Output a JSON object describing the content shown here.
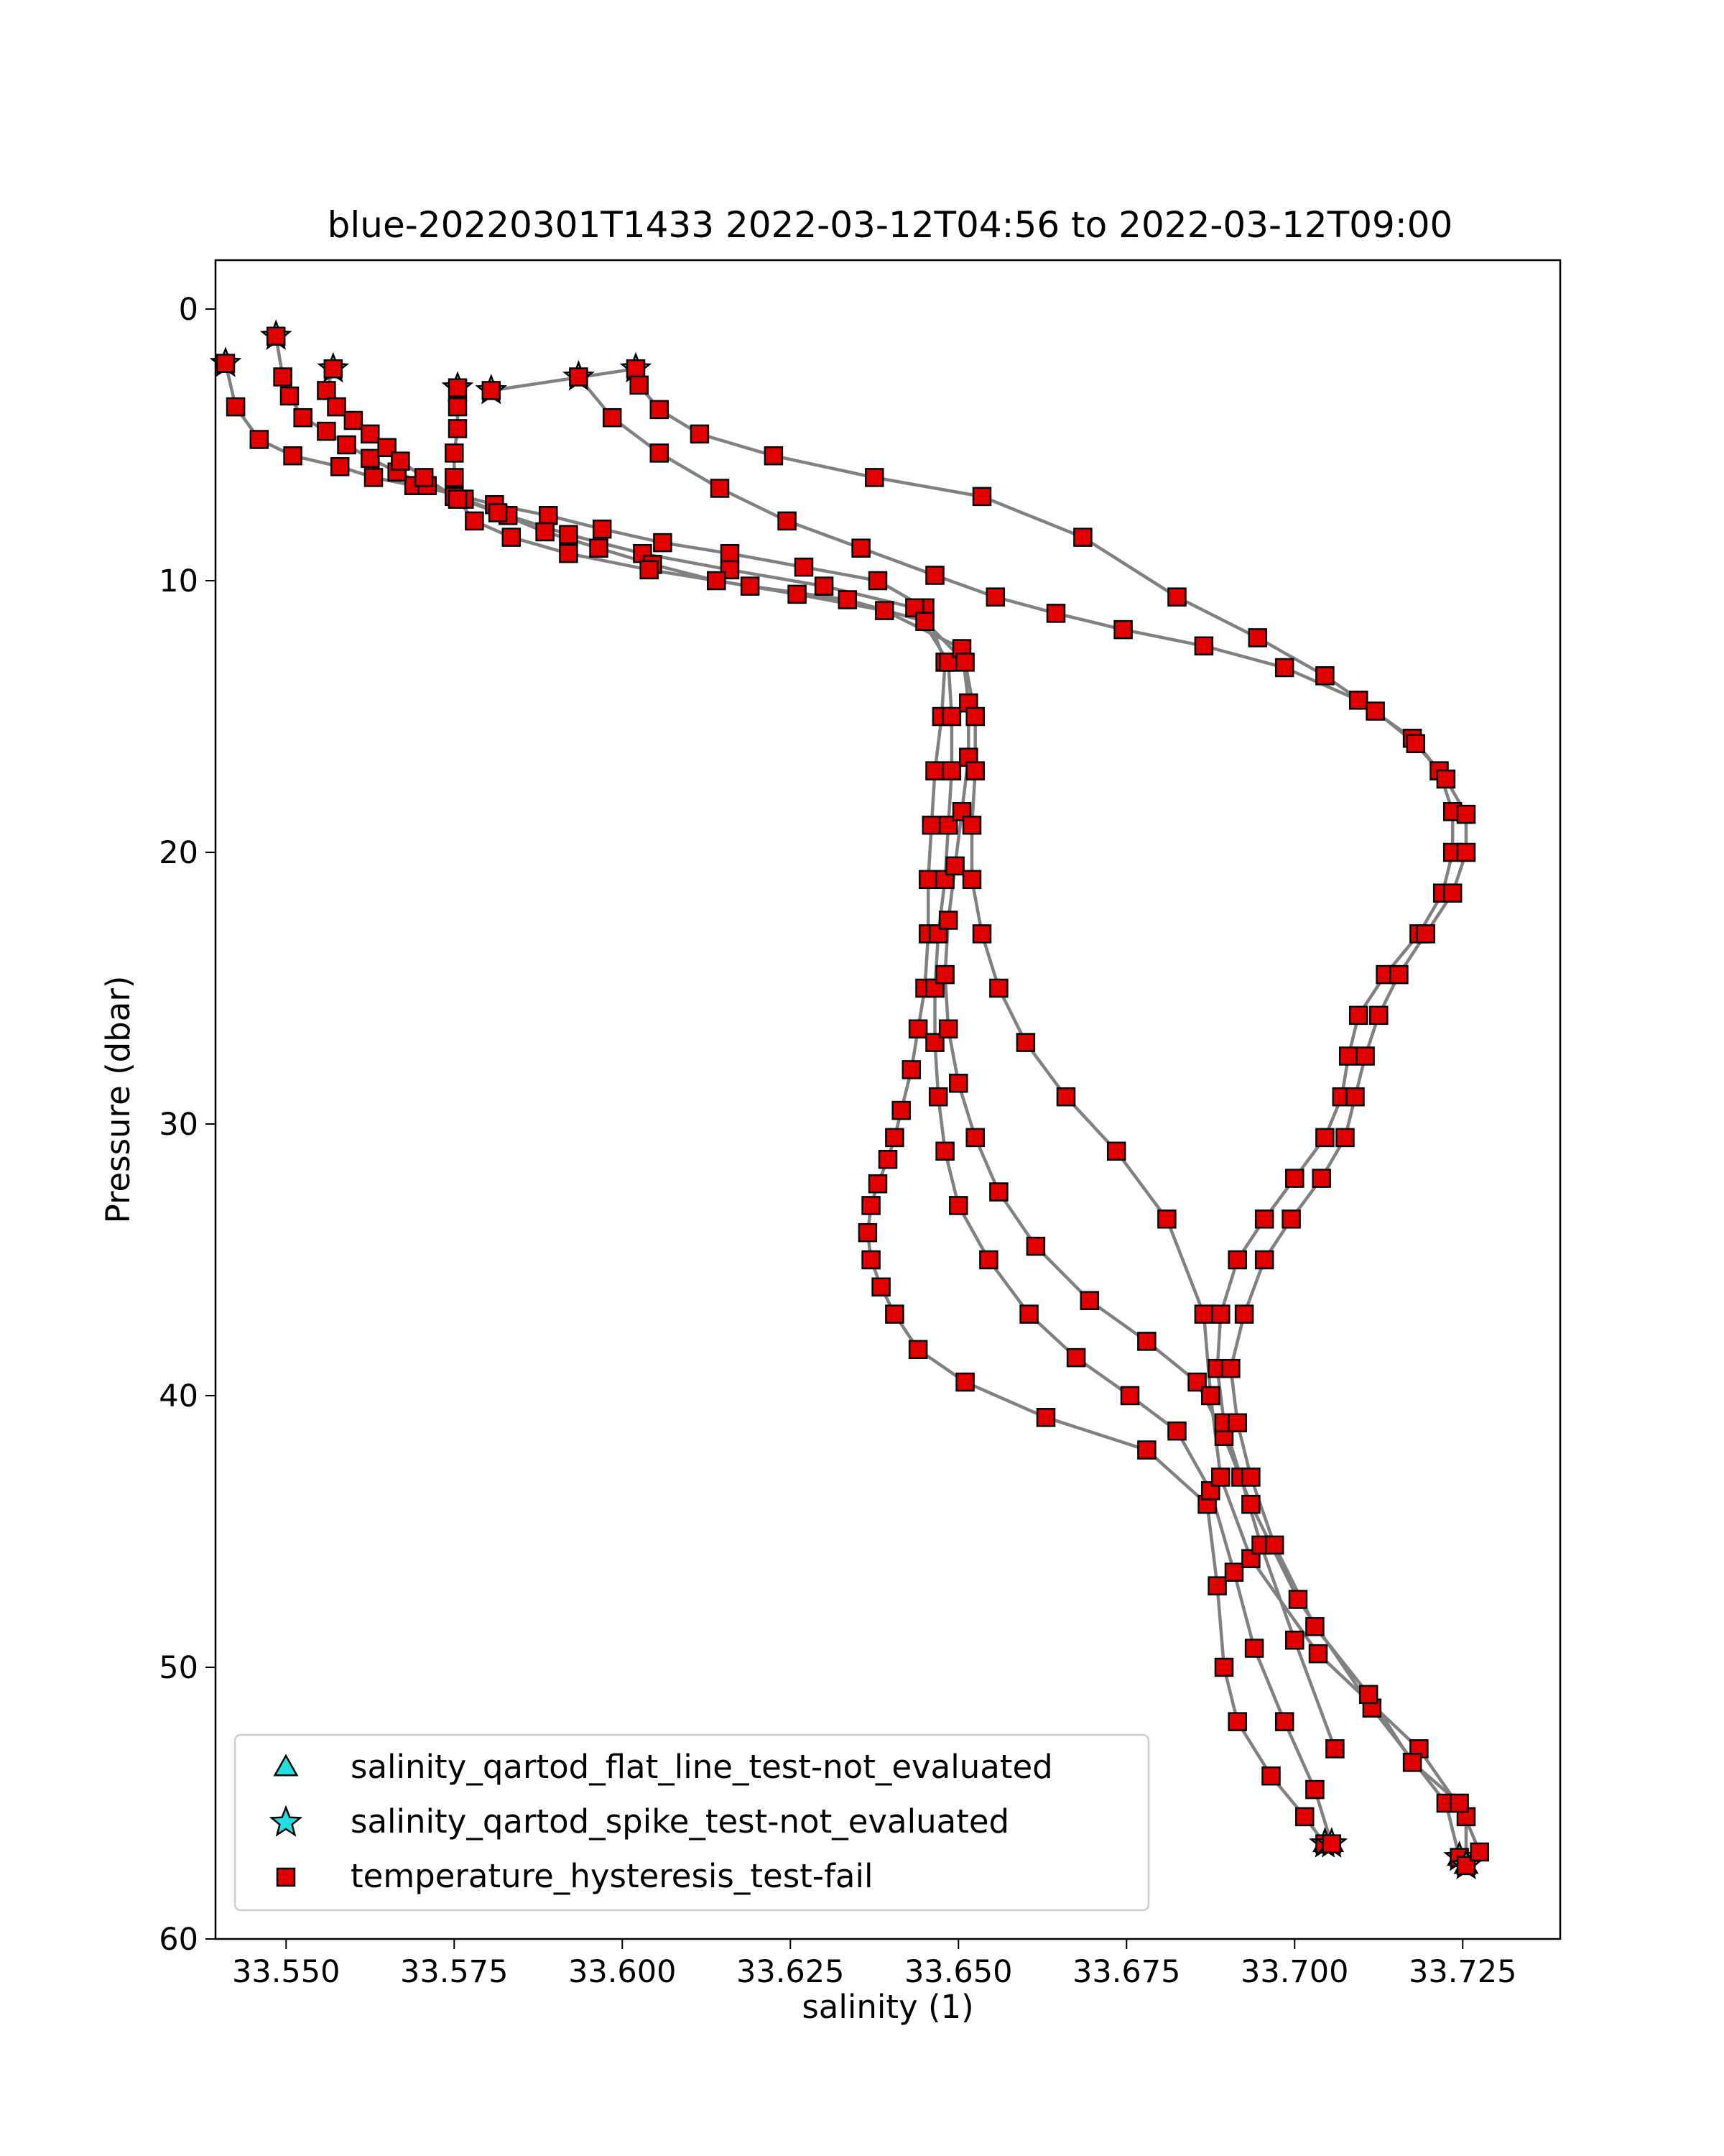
{
  "chart_data": {
    "type": "scatter",
    "title": "blue-20220301T1433 2022-03-12T04:56 to 2022-03-12T09:00",
    "xlabel": "salinity (1)",
    "ylabel": "Pressure (dbar)",
    "xlim": [
      33.5395,
      33.7395
    ],
    "ylim": [
      60,
      -1.8
    ],
    "y_inverted": true,
    "grid": false,
    "legend_position": "lower-left",
    "xticks": [
      33.55,
      33.575,
      33.6,
      33.625,
      33.65,
      33.675,
      33.7,
      33.725
    ],
    "xtick_labels": [
      "33.550",
      "33.575",
      "33.600",
      "33.625",
      "33.650",
      "33.675",
      "33.700",
      "33.725"
    ],
    "yticks": [
      0,
      10,
      20,
      30,
      40,
      50,
      60
    ],
    "ytick_labels": [
      "0",
      "10",
      "20",
      "30",
      "40",
      "50",
      "60"
    ],
    "line_color": "#808080",
    "legend": [
      {
        "label": "salinity_qartod_flat_line_test-not_evaluated",
        "marker": "triangle",
        "color": "#22e0e0"
      },
      {
        "label": "salinity_qartod_spike_test-not_evaluated",
        "marker": "star",
        "color": "#22e0e0"
      },
      {
        "label": "temperature_hysteresis_test-fail",
        "marker": "square",
        "color": "#e00000"
      }
    ],
    "series": [
      {
        "x": [
          33.541,
          33.5425,
          33.546,
          33.551,
          33.558,
          33.563,
          33.569,
          33.575,
          33.581,
          33.589,
          33.597,
          33.606,
          33.616,
          33.627,
          33.638,
          33.645,
          33.648,
          33.6475,
          33.6465,
          33.646,
          33.6455,
          33.6455,
          33.645,
          33.644,
          33.643,
          33.6415,
          33.6405,
          33.6395,
          33.638,
          33.637,
          33.6365,
          33.637,
          33.6385,
          33.6405,
          33.644,
          33.651,
          33.663,
          33.678,
          33.687,
          33.6885,
          33.6895,
          33.6915,
          33.6965,
          33.7015,
          33.7045
        ],
        "y": [
          2.0,
          3.6,
          4.8,
          5.4,
          5.8,
          6.2,
          6.5,
          6.8,
          7.2,
          7.6,
          8.1,
          8.6,
          9.0,
          9.5,
          10.0,
          11.0,
          13.0,
          15.0,
          17.0,
          19.0,
          21.0,
          23.0,
          25.0,
          26.5,
          28.0,
          29.5,
          30.5,
          31.3,
          32.2,
          33.0,
          34.0,
          35.0,
          36.0,
          37.0,
          38.3,
          39.5,
          40.8,
          42.0,
          44.0,
          47.0,
          50.0,
          52.0,
          54.0,
          55.5,
          56.5
        ],
        "flags": [
          [
            "star"
          ],
          [],
          [],
          [],
          [],
          [],
          [],
          [],
          [],
          [],
          [],
          [],
          [],
          [],
          [],
          [],
          [],
          [],
          [],
          [],
          [],
          [],
          [],
          [],
          [],
          [],
          [],
          [],
          [],
          [],
          [],
          [],
          [],
          [],
          [],
          [],
          [],
          [],
          [],
          [],
          [],
          [],
          [],
          [],
          [
            "triangle",
            "star"
          ]
        ]
      },
      {
        "x": [
          33.5485,
          33.5495,
          33.5505,
          33.5525,
          33.556,
          33.559,
          33.5625,
          33.5665,
          33.571,
          33.5765,
          33.583,
          33.592,
          33.603,
          33.616,
          33.63,
          33.6435,
          33.6485,
          33.649,
          33.649,
          33.6485,
          33.648,
          33.647,
          33.6465,
          33.6465,
          33.647,
          33.648,
          33.65,
          33.6545,
          33.6605,
          33.6675,
          33.6755,
          33.6825,
          33.6875,
          33.691,
          33.694,
          33.6985,
          33.703,
          33.7055
        ],
        "y": [
          1.0,
          2.5,
          3.2,
          4.0,
          4.5,
          5.0,
          5.5,
          6.0,
          6.5,
          7.0,
          7.6,
          8.3,
          9.0,
          9.6,
          10.2,
          11.0,
          13.0,
          15.0,
          17.0,
          19.0,
          21.0,
          23.0,
          25.0,
          27.0,
          29.0,
          31.0,
          33.0,
          35.0,
          37.0,
          38.6,
          40.0,
          41.3,
          43.5,
          46.5,
          49.3,
          52.0,
          54.5,
          56.5
        ],
        "flags": [
          [
            "star"
          ],
          [],
          [],
          [],
          [],
          [],
          [],
          [],
          [],
          [],
          [],
          [],
          [],
          [],
          [],
          [],
          [],
          [],
          [],
          [],
          [],
          [],
          [],
          [],
          [],
          [],
          [],
          [],
          [],
          [],
          [],
          [],
          [],
          [],
          [],
          [],
          [],
          [
            "triangle",
            "star"
          ]
        ]
      },
      {
        "x": [
          33.557,
          33.556,
          33.5575,
          33.56,
          33.5625,
          33.565,
          33.567,
          33.5705,
          33.575,
          33.5815,
          33.5885,
          33.5965,
          33.6045,
          33.614,
          33.626,
          33.639,
          33.6505,
          33.6515,
          33.6515,
          33.6505,
          33.6495,
          33.6485,
          33.648,
          33.6485,
          33.65,
          33.6525,
          33.656,
          33.6615,
          33.6695,
          33.678,
          33.6855,
          33.6895,
          33.6935,
          33.7005,
          33.7115,
          33.7225,
          33.7245
        ],
        "y": [
          2.2,
          3.0,
          3.6,
          4.1,
          4.6,
          5.1,
          5.6,
          6.2,
          6.9,
          7.5,
          8.2,
          8.8,
          9.4,
          10.0,
          10.5,
          11.1,
          12.5,
          14.5,
          16.5,
          18.5,
          20.5,
          22.5,
          24.5,
          26.5,
          28.5,
          30.5,
          32.5,
          34.5,
          36.5,
          38.0,
          39.5,
          41.5,
          44.0,
          47.5,
          51.5,
          55.0,
          57.0
        ],
        "flags": [
          [
            "star"
          ],
          [],
          [],
          [],
          [],
          [],
          [],
          [],
          [],
          [],
          [],
          [],
          [],
          [],
          [],
          [],
          [],
          [],
          [],
          [],
          [],
          [],
          [],
          [],
          [],
          [],
          [],
          [],
          [],
          [],
          [],
          [],
          [],
          [],
          [],
          [],
          [
            "triangle",
            "star"
          ]
        ]
      },
      {
        "x": [
          33.5755,
          33.5755,
          33.5755,
          33.575,
          33.575,
          33.5755,
          33.578,
          33.5835,
          33.592,
          33.604,
          33.619,
          33.6335,
          33.645,
          33.651,
          33.6525,
          33.6525,
          33.652,
          33.652,
          33.6535,
          33.656,
          33.66,
          33.666,
          33.6735,
          33.681,
          33.6865,
          33.6875,
          33.689,
          33.6935,
          33.7035,
          33.7185,
          33.7255,
          33.7255
        ],
        "y": [
          2.9,
          3.6,
          4.4,
          5.3,
          6.2,
          7.0,
          7.8,
          8.4,
          9.0,
          9.6,
          10.2,
          10.7,
          11.5,
          13.0,
          15.0,
          17.0,
          19.0,
          21.0,
          23.0,
          25.0,
          27.0,
          29.0,
          31.0,
          33.5,
          37.0,
          40.0,
          43.0,
          46.0,
          49.5,
          53.0,
          55.5,
          57.3
        ],
        "flags": [
          [
            "star"
          ],
          [],
          [],
          [],
          [],
          [],
          [],
          [],
          [],
          [],
          [],
          [],
          [],
          [],
          [],
          [],
          [],
          [],
          [],
          [],
          [],
          [],
          [],
          [],
          [],
          [],
          [],
          [],
          [],
          [],
          [],
          [
            "triangle",
            "star"
          ]
        ]
      },
      {
        "x": [
          33.5935,
          33.5985,
          33.6055,
          33.6145,
          33.6245,
          33.6355,
          33.6465,
          33.6555,
          33.6645,
          33.6745,
          33.6865,
          33.6985,
          33.7095,
          33.7175,
          33.7215,
          33.7235,
          33.7235,
          33.722,
          33.7185,
          33.7135,
          33.7095,
          33.708,
          33.707,
          33.7045,
          33.7,
          33.6955,
          33.6915,
          33.689,
          33.6885,
          33.6895,
          33.692,
          33.695,
          33.7,
          33.706
        ],
        "y": [
          2.5,
          4.0,
          5.3,
          6.6,
          7.8,
          8.8,
          9.8,
          10.6,
          11.2,
          11.8,
          12.4,
          13.2,
          14.4,
          15.8,
          17.0,
          18.5,
          20.0,
          21.5,
          23.0,
          24.5,
          26.0,
          27.5,
          29.0,
          30.5,
          32.0,
          33.5,
          35.0,
          37.0,
          39.0,
          41.0,
          43.0,
          45.5,
          49.0,
          53.0
        ],
        "flags": [
          [
            "star"
          ],
          [],
          [],
          [],
          [],
          [],
          [],
          [],
          [],
          [],
          [],
          [],
          [],
          [],
          [],
          [],
          [],
          [],
          [],
          [],
          [],
          [],
          [],
          [],
          [],
          [],
          [],
          [],
          [],
          [],
          [],
          [],
          [],
          []
        ]
      },
      {
        "x": [
          33.5805,
          33.602,
          33.6025,
          33.6055,
          33.6115,
          33.6225,
          33.6375,
          33.6535,
          33.6685,
          33.6825,
          33.6945,
          33.7045,
          33.712,
          33.718,
          33.7225,
          33.7255,
          33.7255,
          33.7235,
          33.7195,
          33.7155,
          33.7125,
          33.7105,
          33.709,
          33.7075,
          33.704,
          33.6995,
          33.6955,
          33.6925,
          33.6905,
          33.6915,
          33.6935,
          33.697,
          33.703,
          33.711,
          33.7175,
          33.7245,
          33.7275
        ],
        "y": [
          3.0,
          2.2,
          2.8,
          3.7,
          4.6,
          5.4,
          6.2,
          6.9,
          8.4,
          10.6,
          12.1,
          13.5,
          14.8,
          16.0,
          17.3,
          18.6,
          20.0,
          21.5,
          23.0,
          24.5,
          26.0,
          27.5,
          29.0,
          30.5,
          32.0,
          33.5,
          35.0,
          37.0,
          39.0,
          41.0,
          43.0,
          45.5,
          48.5,
          51.0,
          53.5,
          55.0,
          56.8
        ],
        "flags": [
          [
            "star"
          ],
          [
            "star"
          ],
          [],
          [],
          [],
          [],
          [],
          [],
          [],
          [],
          [],
          [],
          [],
          [],
          [],
          [],
          [],
          [],
          [],
          [],
          [],
          [],
          [],
          [],
          [],
          [],
          [],
          [],
          [],
          [],
          [],
          [],
          [],
          [],
          [],
          [],
          []
        ]
      }
    ]
  }
}
